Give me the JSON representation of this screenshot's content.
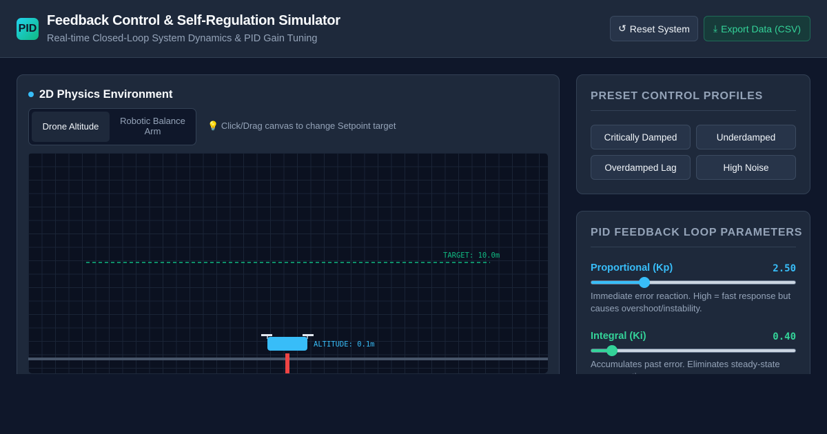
{
  "header": {
    "logo_text": "PID",
    "title": "Feedback Control & Self-Regulation Simulator",
    "subtitle": "Real-time Closed-Loop System Dynamics & PID Gain Tuning",
    "reset_icon": "↺",
    "reset_label": "Reset System",
    "export_icon": "⤓",
    "export_label": "Export Data (CSV)"
  },
  "environment": {
    "title": "2D Physics Environment",
    "tabs": [
      {
        "label": "Drone Altitude",
        "active": true
      },
      {
        "label": "Robotic Balance Arm",
        "active": false
      }
    ],
    "hint_icon": "💡",
    "hint": "Click/Drag canvas to change Setpoint target",
    "target_label": "TARGET: 10.0m",
    "altitude_label": "ALTITUDE: 0.1m",
    "colors": {
      "target": "#10b981",
      "drone": "#38bdf8",
      "thrust": "#ef4444"
    }
  },
  "presets": {
    "title": "PRESET CONTROL PROFILES",
    "buttons": [
      "Critically Damped",
      "Underdamped",
      "Overdamped Lag",
      "High Noise"
    ]
  },
  "pid": {
    "title": "PID FEEDBACK LOOP PARAMETERS",
    "params": [
      {
        "name": "Proportional (Kp)",
        "value": "2.50",
        "fraction": 0.26,
        "description": "Immediate error reaction. High = fast response but causes overshoot/instability.",
        "color": "#38bdf8"
      },
      {
        "name": "Integral (Ki)",
        "value": "0.40",
        "fraction": 0.1,
        "description": "Accumulates past error. Eliminates steady-state error over time.",
        "color": "#34d399"
      }
    ]
  }
}
